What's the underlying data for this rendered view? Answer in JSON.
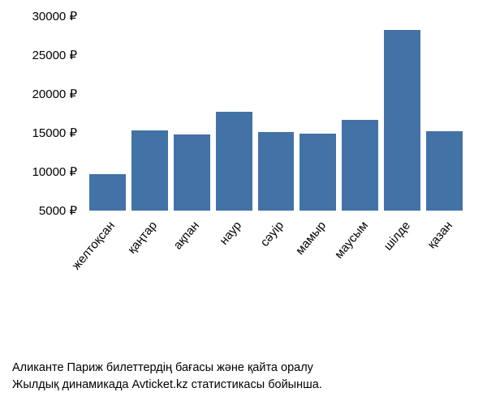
{
  "chart": {
    "type": "bar",
    "categories": [
      "желтоқсан",
      "қаңтар",
      "ақпан",
      "наур",
      "сәуір",
      "мамыр",
      "маусым",
      "шілде",
      "қазан"
    ],
    "values": [
      9700,
      15300,
      14800,
      17700,
      15100,
      14900,
      16700,
      28200,
      15200
    ],
    "bar_color": "#4372a6",
    "background_color": "#ffffff",
    "y_min": 5000,
    "y_max": 30000,
    "y_tick_step": 5000,
    "y_ticks": [
      5000,
      10000,
      15000,
      20000,
      25000,
      30000
    ],
    "y_suffix": " ₽",
    "label_fontsize": 15,
    "x_label_rotation": -50
  },
  "caption": {
    "line1": "Аликанте Париж билеттердің бағасы және қайта оралу",
    "line2": "Жылдық динамикада Avticket.kz статистикасы бойынша."
  }
}
